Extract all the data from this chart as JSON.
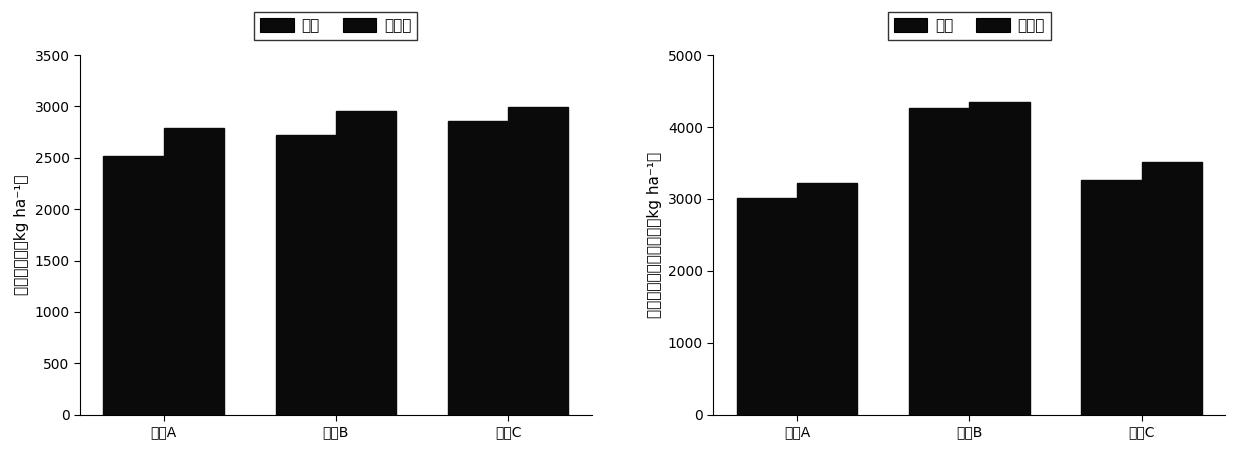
{
  "left_chart": {
    "categories": [
      "试点A",
      "试点B",
      "试点C"
    ],
    "single": [
      2520,
      2720,
      2860
    ],
    "intercrop": [
      2790,
      2960,
      2990
    ],
    "ylabel": "油菜籽产量（kg ha⁻¹）",
    "ylim": [
      0,
      3500
    ],
    "yticks": [
      0,
      500,
      1000,
      1500,
      2000,
      2500,
      3000,
      3500
    ],
    "bar_color": "#0a0a0a",
    "bar_width": 0.35
  },
  "right_chart": {
    "categories": [
      "试点A",
      "试点B",
      "试点C"
    ],
    "single": [
      3010,
      4270,
      3270
    ],
    "intercrop": [
      3220,
      4350,
      3510
    ],
    "ylabel": "东南景天产量（干重）（kg ha⁻¹）",
    "ylim": [
      0,
      5000
    ],
    "yticks": [
      0,
      1000,
      2000,
      3000,
      4000,
      5000
    ],
    "bar_color": "#0a0a0a",
    "bar_width": 0.35
  },
  "legend_labels": [
    "单作",
    "间套作"
  ],
  "legend_color": "#0a0a0a",
  "font_size": 11,
  "tick_font_size": 10,
  "ylabel_fontsize": 11,
  "background_color": "#ffffff"
}
